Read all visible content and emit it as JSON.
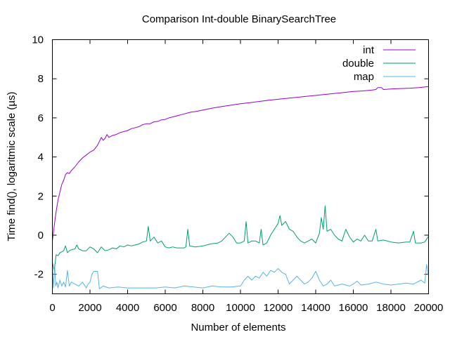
{
  "chart_data": {
    "type": "line",
    "title": "Comparison Int-double BinarySearchTree",
    "xlabel": "Number of elements",
    "ylabel": "Time find(), logaritmic scale (µs)",
    "xlim": [
      0,
      20000
    ],
    "ylim": [
      -3,
      10
    ],
    "xticks": [
      0,
      2000,
      4000,
      6000,
      8000,
      10000,
      12000,
      14000,
      16000,
      18000,
      20000
    ],
    "yticks": [
      -2,
      0,
      2,
      4,
      6,
      8,
      10
    ],
    "grid": false,
    "legend_position": "top-right",
    "series": [
      {
        "name": "int",
        "color": "#9400d3",
        "points": [
          [
            0,
            -0.3
          ],
          [
            100,
            0.5
          ],
          [
            200,
            1.2
          ],
          [
            300,
            1.8
          ],
          [
            400,
            2.2
          ],
          [
            500,
            2.6
          ],
          [
            600,
            2.8
          ],
          [
            700,
            3.1
          ],
          [
            800,
            3.2
          ],
          [
            900,
            3.15
          ],
          [
            1000,
            3.3
          ],
          [
            1200,
            3.5
          ],
          [
            1400,
            3.75
          ],
          [
            1600,
            3.95
          ],
          [
            1800,
            4.1
          ],
          [
            2000,
            4.25
          ],
          [
            2200,
            4.35
          ],
          [
            2400,
            4.6
          ],
          [
            2500,
            4.8
          ],
          [
            2600,
            5.0
          ],
          [
            2700,
            4.85
          ],
          [
            2800,
            4.95
          ],
          [
            2900,
            5.15
          ],
          [
            3000,
            5.0
          ],
          [
            3200,
            5.1
          ],
          [
            3400,
            5.15
          ],
          [
            3600,
            5.25
          ],
          [
            3800,
            5.3
          ],
          [
            4000,
            5.35
          ],
          [
            4200,
            5.45
          ],
          [
            4400,
            5.5
          ],
          [
            4600,
            5.55
          ],
          [
            4800,
            5.65
          ],
          [
            5000,
            5.7
          ],
          [
            5200,
            5.7
          ],
          [
            5400,
            5.8
          ],
          [
            5600,
            5.82
          ],
          [
            5800,
            5.9
          ],
          [
            6000,
            5.92
          ],
          [
            6200,
            6.0
          ],
          [
            6400,
            6.05
          ],
          [
            6600,
            6.1
          ],
          [
            6800,
            6.15
          ],
          [
            7000,
            6.2
          ],
          [
            7200,
            6.25
          ],
          [
            7400,
            6.3
          ],
          [
            7600,
            6.32
          ],
          [
            8000,
            6.4
          ],
          [
            8500,
            6.5
          ],
          [
            9000,
            6.58
          ],
          [
            9500,
            6.65
          ],
          [
            10000,
            6.72
          ],
          [
            10500,
            6.78
          ],
          [
            11000,
            6.84
          ],
          [
            11500,
            6.9
          ],
          [
            12000,
            6.95
          ],
          [
            12500,
            7.0
          ],
          [
            13000,
            7.05
          ],
          [
            13500,
            7.1
          ],
          [
            14000,
            7.15
          ],
          [
            14500,
            7.2
          ],
          [
            15000,
            7.25
          ],
          [
            15500,
            7.3
          ],
          [
            16000,
            7.35
          ],
          [
            16500,
            7.38
          ],
          [
            17000,
            7.42
          ],
          [
            17200,
            7.45
          ],
          [
            17300,
            7.55
          ],
          [
            17500,
            7.55
          ],
          [
            17600,
            7.45
          ],
          [
            18000,
            7.48
          ],
          [
            18500,
            7.5
          ],
          [
            19000,
            7.52
          ],
          [
            19500,
            7.55
          ],
          [
            20000,
            7.6
          ]
        ]
      },
      {
        "name": "double",
        "color": "#009e73",
        "points": [
          [
            0,
            -1.4
          ],
          [
            100,
            -1.8
          ],
          [
            200,
            -1.0
          ],
          [
            300,
            -1.05
          ],
          [
            400,
            -0.9
          ],
          [
            500,
            -0.85
          ],
          [
            600,
            -0.8
          ],
          [
            700,
            -0.55
          ],
          [
            800,
            -0.9
          ],
          [
            900,
            -0.8
          ],
          [
            1000,
            -0.75
          ],
          [
            1200,
            -0.7
          ],
          [
            1300,
            -0.5
          ],
          [
            1400,
            -0.7
          ],
          [
            1600,
            -0.8
          ],
          [
            1800,
            -0.8
          ],
          [
            2000,
            -0.6
          ],
          [
            2200,
            -0.7
          ],
          [
            2400,
            -0.9
          ],
          [
            2600,
            -0.6
          ],
          [
            2800,
            -0.8
          ],
          [
            3000,
            -0.75
          ],
          [
            3200,
            -0.65
          ],
          [
            3400,
            -0.7
          ],
          [
            3600,
            -0.55
          ],
          [
            3800,
            -0.6
          ],
          [
            4000,
            -0.5
          ],
          [
            4200,
            -0.55
          ],
          [
            4400,
            -0.5
          ],
          [
            4600,
            -0.45
          ],
          [
            4800,
            -0.35
          ],
          [
            5000,
            -0.3
          ],
          [
            5100,
            0.45
          ],
          [
            5200,
            -0.3
          ],
          [
            5400,
            -0.1
          ],
          [
            5600,
            -0.4
          ],
          [
            5800,
            -0.3
          ],
          [
            6000,
            -0.6
          ],
          [
            6200,
            -0.65
          ],
          [
            6400,
            -0.6
          ],
          [
            6600,
            -0.65
          ],
          [
            6800,
            -0.65
          ],
          [
            7000,
            -0.65
          ],
          [
            7100,
            -0.6
          ],
          [
            7200,
            0.3
          ],
          [
            7300,
            -0.55
          ],
          [
            7600,
            -0.6
          ],
          [
            8000,
            -0.55
          ],
          [
            8400,
            -0.45
          ],
          [
            8800,
            -0.4
          ],
          [
            9000,
            -0.3
          ],
          [
            9200,
            -0.1
          ],
          [
            9400,
            0.1
          ],
          [
            9600,
            -0.1
          ],
          [
            9800,
            -0.4
          ],
          [
            10000,
            -0.4
          ],
          [
            10200,
            -0.3
          ],
          [
            10300,
            0.7
          ],
          [
            10400,
            -0.4
          ],
          [
            10600,
            -0.3
          ],
          [
            10800,
            -0.3
          ],
          [
            11000,
            -0.4
          ],
          [
            11100,
            0.3
          ],
          [
            11200,
            -0.5
          ],
          [
            11400,
            -0.4
          ],
          [
            11600,
            0.0
          ],
          [
            11800,
            0.3
          ],
          [
            12000,
            0.6
          ],
          [
            12100,
            1.0
          ],
          [
            12200,
            0.5
          ],
          [
            12400,
            0.7
          ],
          [
            12600,
            0.3
          ],
          [
            12800,
            0.2
          ],
          [
            13000,
            -0.1
          ],
          [
            13200,
            -0.3
          ],
          [
            13400,
            -0.4
          ],
          [
            13600,
            -0.3
          ],
          [
            13800,
            -0.2
          ],
          [
            14000,
            -0.4
          ],
          [
            14200,
            0.1
          ],
          [
            14300,
            0.9
          ],
          [
            14400,
            0.3
          ],
          [
            14500,
            1.5
          ],
          [
            14600,
            0.2
          ],
          [
            14800,
            0.3
          ],
          [
            15000,
            0.0
          ],
          [
            15200,
            -0.2
          ],
          [
            15400,
            -0.3
          ],
          [
            15600,
            0.3
          ],
          [
            15800,
            -0.1
          ],
          [
            16000,
            -0.35
          ],
          [
            16200,
            -0.2
          ],
          [
            16400,
            -0.3
          ],
          [
            16600,
            0.0
          ],
          [
            16800,
            -0.3
          ],
          [
            17000,
            -0.3
          ],
          [
            17200,
            0.3
          ],
          [
            17300,
            -0.3
          ],
          [
            17600,
            -0.25
          ],
          [
            18000,
            -0.35
          ],
          [
            18400,
            -0.4
          ],
          [
            18800,
            -0.35
          ],
          [
            19000,
            -0.35
          ],
          [
            19200,
            0.2
          ],
          [
            19300,
            -0.4
          ],
          [
            19600,
            -0.4
          ],
          [
            19800,
            -0.35
          ],
          [
            20000,
            -0.05
          ]
        ]
      },
      {
        "name": "map",
        "color": "#56b4e9",
        "points": [
          [
            0,
            -1.6
          ],
          [
            60,
            -2.7
          ],
          [
            120,
            -1.5
          ],
          [
            180,
            -2.6
          ],
          [
            240,
            -2.4
          ],
          [
            300,
            -2.7
          ],
          [
            400,
            -2.3
          ],
          [
            500,
            -2.6
          ],
          [
            600,
            -2.4
          ],
          [
            700,
            -2.65
          ],
          [
            800,
            -1.8
          ],
          [
            900,
            -2.6
          ],
          [
            1000,
            -2.4
          ],
          [
            1200,
            -2.5
          ],
          [
            1400,
            -2.6
          ],
          [
            1600,
            -2.4
          ],
          [
            1800,
            -2.7
          ],
          [
            1900,
            -2.5
          ],
          [
            2000,
            -2.4
          ],
          [
            2100,
            -2.0
          ],
          [
            2200,
            -1.85
          ],
          [
            2400,
            -1.85
          ],
          [
            2500,
            -2.75
          ],
          [
            2700,
            -2.6
          ],
          [
            3000,
            -2.7
          ],
          [
            3500,
            -2.65
          ],
          [
            4000,
            -2.7
          ],
          [
            4500,
            -2.7
          ],
          [
            5000,
            -2.7
          ],
          [
            5500,
            -2.7
          ],
          [
            6000,
            -2.65
          ],
          [
            6500,
            -2.7
          ],
          [
            7000,
            -2.6
          ],
          [
            7500,
            -2.65
          ],
          [
            8000,
            -2.7
          ],
          [
            8500,
            -2.6
          ],
          [
            9000,
            -2.65
          ],
          [
            9500,
            -2.65
          ],
          [
            10000,
            -2.6
          ],
          [
            10200,
            -2.3
          ],
          [
            10400,
            -2.1
          ],
          [
            10600,
            -2.3
          ],
          [
            10800,
            -2.1
          ],
          [
            11000,
            -2.2
          ],
          [
            11200,
            -1.9
          ],
          [
            11400,
            -2.1
          ],
          [
            11600,
            -1.8
          ],
          [
            11800,
            -1.9
          ],
          [
            12000,
            -1.7
          ],
          [
            12200,
            -1.9
          ],
          [
            12400,
            -2.0
          ],
          [
            12600,
            -2.5
          ],
          [
            12800,
            -2.3
          ],
          [
            13000,
            -2.1
          ],
          [
            13200,
            -2.3
          ],
          [
            13400,
            -2.5
          ],
          [
            13600,
            -2.4
          ],
          [
            13800,
            -2.2
          ],
          [
            14000,
            -1.85
          ],
          [
            14200,
            -2.3
          ],
          [
            14400,
            -2.6
          ],
          [
            14600,
            -2.5
          ],
          [
            14800,
            -2.3
          ],
          [
            15000,
            -2.6
          ],
          [
            15400,
            -2.5
          ],
          [
            15800,
            -2.6
          ],
          [
            16000,
            -2.5
          ],
          [
            16200,
            -2.35
          ],
          [
            16400,
            -2.55
          ],
          [
            16800,
            -2.5
          ],
          [
            17200,
            -2.4
          ],
          [
            17400,
            -2.45
          ],
          [
            17600,
            -2.5
          ],
          [
            18000,
            -2.55
          ],
          [
            18400,
            -2.5
          ],
          [
            18800,
            -2.45
          ],
          [
            19200,
            -2.5
          ],
          [
            19600,
            -2.3
          ],
          [
            19800,
            -2.45
          ],
          [
            19900,
            -1.5
          ],
          [
            20000,
            -2.1
          ]
        ]
      }
    ]
  }
}
